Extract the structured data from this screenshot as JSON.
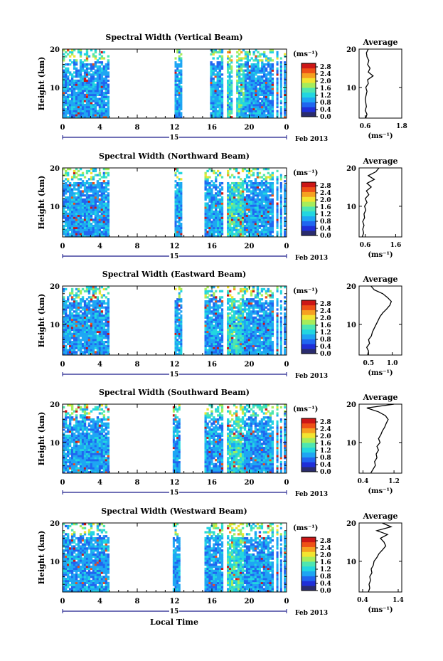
{
  "figure": {
    "date_label": "Feb 2013",
    "xlabel_bottom": "Local Time",
    "colorbar": {
      "unit": "(ms⁻¹)",
      "tick_labels": [
        "2.8",
        "2.4",
        "2.0",
        "1.6",
        "1.2",
        "0.8",
        "0.4",
        "0.0"
      ],
      "colors": [
        "#2a2c6e",
        "#1f2fd8",
        "#2066f0",
        "#1ea6f3",
        "#22d6e0",
        "#4ee6b0",
        "#a6ec5a",
        "#f2e430",
        "#f6a020",
        "#ee5016",
        "#cc1616"
      ]
    }
  },
  "chart_data": [
    {
      "type": "heatmap",
      "title": "Spectral Width (Vertical Beam)",
      "xlabel": "",
      "ylabel": "Height (km)",
      "x_ticks": [
        "0",
        "4",
        "8",
        "12",
        "16",
        "20",
        "0"
      ],
      "x_day_label": "15",
      "y_ticks": [
        "20",
        "10"
      ],
      "xlim": [
        0,
        24
      ],
      "ylim": [
        2,
        20
      ],
      "data_hours": [
        [
          0,
          5
        ],
        [
          12,
          12.8
        ],
        [
          15.8,
          17.2
        ],
        [
          17.6,
          18.2
        ],
        [
          18.6,
          22.6
        ],
        [
          22.9,
          23.1
        ],
        [
          23.3,
          23.5
        ],
        [
          23.7,
          23.9
        ]
      ],
      "colorbar_range_ms": [
        0.0,
        3.0
      ],
      "average_profile": {
        "title": "Average",
        "xlabel": "(ms⁻¹)",
        "x_ticks": [
          "0.6",
          "1.8"
        ],
        "y_ticks": [
          "20",
          "10"
        ],
        "xlim": [
          0.4,
          1.8
        ],
        "height_km": [
          2,
          3,
          4,
          5,
          6,
          7,
          8,
          9,
          10,
          11,
          12,
          13,
          14,
          15,
          16,
          17,
          18,
          19,
          20
        ],
        "width_ms": [
          0.62,
          0.66,
          0.6,
          0.64,
          0.62,
          0.6,
          0.63,
          0.66,
          0.62,
          0.7,
          0.68,
          0.86,
          0.7,
          0.76,
          0.68,
          0.72,
          0.66,
          0.64,
          0.7
        ]
      }
    },
    {
      "type": "heatmap",
      "title": "Spectral Width (Northward Beam)",
      "xlabel": "",
      "ylabel": "Height (km)",
      "x_ticks": [
        "0",
        "4",
        "8",
        "12",
        "16",
        "20",
        "0"
      ],
      "x_day_label": "15",
      "y_ticks": [
        "20",
        "10"
      ],
      "xlim": [
        0,
        24
      ],
      "ylim": [
        2,
        20
      ],
      "data_hours": [
        [
          0,
          5
        ],
        [
          12,
          12.8
        ],
        [
          15.2,
          17.2
        ],
        [
          17.6,
          22.6
        ],
        [
          22.9,
          23.1
        ],
        [
          23.3,
          23.5
        ],
        [
          23.7,
          23.9
        ]
      ],
      "colorbar_range_ms": [
        0.0,
        3.0
      ],
      "average_profile": {
        "title": "Average",
        "xlabel": "(ms⁻¹)",
        "x_ticks": [
          "0.6",
          "1.6"
        ],
        "y_ticks": [
          "20",
          "10"
        ],
        "xlim": [
          0.4,
          1.8
        ],
        "height_km": [
          2,
          3,
          4,
          5,
          6,
          7,
          8,
          9,
          10,
          11,
          12,
          13,
          14,
          15,
          16,
          17,
          18,
          19,
          20
        ],
        "width_ms": [
          0.5,
          0.55,
          0.52,
          0.56,
          0.52,
          0.58,
          0.56,
          0.62,
          0.58,
          0.66,
          0.6,
          0.72,
          0.64,
          0.8,
          0.66,
          0.9,
          0.7,
          0.95,
          1.05
        ]
      }
    },
    {
      "type": "heatmap",
      "title": "Spectral Width (Eastward Beam)",
      "xlabel": "",
      "ylabel": "Height (km)",
      "x_ticks": [
        "0",
        "4",
        "8",
        "12",
        "16",
        "20",
        "0"
      ],
      "x_day_label": "15",
      "y_ticks": [
        "20",
        "10"
      ],
      "xlim": [
        0,
        24
      ],
      "ylim": [
        2,
        20
      ],
      "data_hours": [
        [
          0,
          5
        ],
        [
          12,
          12.8
        ],
        [
          15.2,
          17.2
        ],
        [
          17.6,
          22.6
        ],
        [
          22.9,
          23.1
        ],
        [
          23.3,
          23.5
        ],
        [
          23.7,
          23.9
        ]
      ],
      "colorbar_range_ms": [
        0.0,
        3.0
      ],
      "average_profile": {
        "title": "Average",
        "xlabel": "(ms⁻¹)",
        "x_ticks": [
          "0.5",
          "1.0"
        ],
        "y_ticks": [
          "20",
          "10"
        ],
        "xlim": [
          0.3,
          1.2
        ],
        "height_km": [
          2,
          3,
          4,
          5,
          6,
          7,
          8,
          9,
          10,
          11,
          12,
          13,
          14,
          15,
          16,
          17,
          18,
          19,
          20
        ],
        "width_ms": [
          0.48,
          0.5,
          0.46,
          0.52,
          0.5,
          0.56,
          0.58,
          0.62,
          0.66,
          0.7,
          0.74,
          0.8,
          0.88,
          0.95,
          0.98,
          0.9,
          0.8,
          0.62,
          0.55
        ]
      }
    },
    {
      "type": "heatmap",
      "title": "Spectral Width (Southward Beam)",
      "xlabel": "",
      "ylabel": "Height (km)",
      "x_ticks": [
        "0",
        "4",
        "8",
        "12",
        "16",
        "20",
        "0"
      ],
      "x_day_label": "15",
      "y_ticks": [
        "20",
        "10"
      ],
      "xlim": [
        0,
        24
      ],
      "ylim": [
        2,
        20
      ],
      "data_hours": [
        [
          0,
          5
        ],
        [
          11.8,
          12.6
        ],
        [
          15.2,
          17.2
        ],
        [
          17.6,
          22.6
        ],
        [
          22.9,
          23.1
        ],
        [
          23.3,
          23.5
        ],
        [
          23.7,
          23.9
        ]
      ],
      "colorbar_range_ms": [
        0.0,
        3.0
      ],
      "average_profile": {
        "title": "Average",
        "xlabel": "(ms⁻¹)",
        "x_ticks": [
          "0.4",
          "1.2"
        ],
        "y_ticks": [
          "20",
          "10"
        ],
        "xlim": [
          0.3,
          1.4
        ],
        "height_km": [
          2,
          3,
          4,
          5,
          6,
          7,
          8,
          9,
          10,
          11,
          12,
          13,
          14,
          15,
          16,
          17,
          18,
          19,
          20
        ],
        "width_ms": [
          0.6,
          0.66,
          0.72,
          0.7,
          0.76,
          0.74,
          0.8,
          0.76,
          0.84,
          0.8,
          0.86,
          0.9,
          0.96,
          1.0,
          1.05,
          0.98,
          0.8,
          0.5,
          1.2
        ]
      }
    },
    {
      "type": "heatmap",
      "title": "Spectral Width (Westward Beam)",
      "xlabel": "",
      "ylabel": "Height (km)",
      "x_ticks": [
        "0",
        "4",
        "8",
        "12",
        "16",
        "20",
        "0"
      ],
      "x_day_label": "15",
      "y_ticks": [
        "20",
        "10"
      ],
      "xlim": [
        0,
        24
      ],
      "ylim": [
        2,
        20
      ],
      "data_hours": [
        [
          0,
          5
        ],
        [
          11.8,
          12.6
        ],
        [
          15.2,
          17.2
        ],
        [
          17.6,
          22.6
        ],
        [
          22.9,
          23.1
        ],
        [
          23.3,
          23.5
        ],
        [
          23.7,
          23.9
        ]
      ],
      "colorbar_range_ms": [
        0.0,
        3.0
      ],
      "average_profile": {
        "title": "Average",
        "xlabel": "(ms⁻¹)",
        "x_ticks": [
          "0.4",
          "1.4"
        ],
        "y_ticks": [
          "20",
          "10"
        ],
        "xlim": [
          0.3,
          1.5
        ],
        "height_km": [
          2,
          3,
          4,
          5,
          6,
          7,
          8,
          9,
          10,
          11,
          12,
          13,
          14,
          15,
          16,
          17,
          18,
          19,
          20
        ],
        "width_ms": [
          0.56,
          0.6,
          0.58,
          0.62,
          0.6,
          0.66,
          0.64,
          0.7,
          0.72,
          0.8,
          0.86,
          0.96,
          1.05,
          1.0,
          0.9,
          1.1,
          0.8,
          1.2,
          0.95
        ]
      }
    }
  ]
}
